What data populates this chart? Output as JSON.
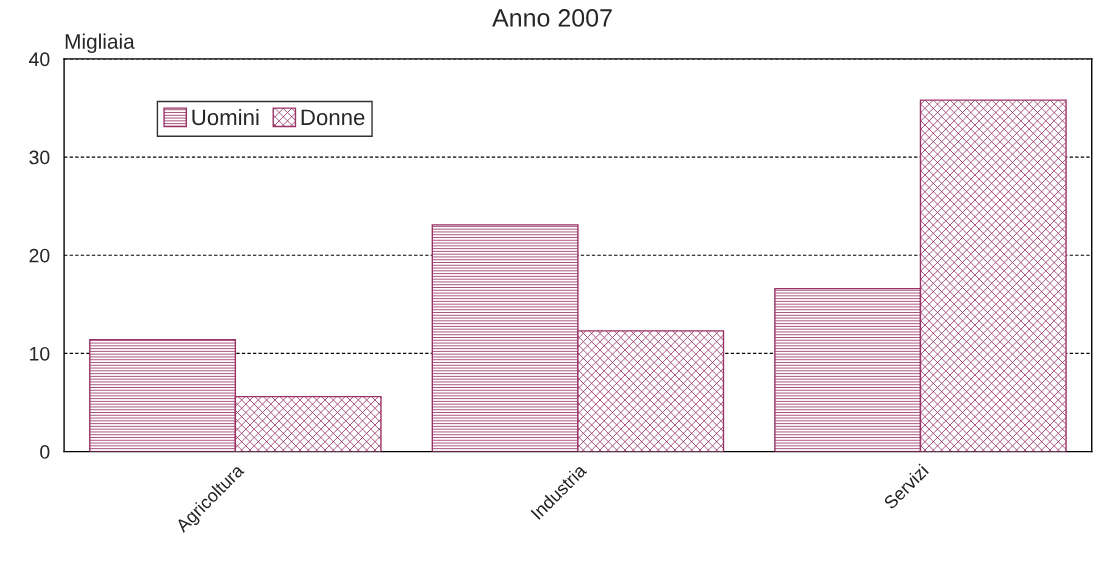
{
  "chart_data": {
    "type": "bar",
    "title": "Anno 2007",
    "ylabel": "Migliaia",
    "categories": [
      "Agricoltura",
      "Industria",
      "Servizi"
    ],
    "series": [
      {
        "name": "Uomini",
        "color": "#993366",
        "values": [
          11.4,
          23.1,
          16.6
        ]
      },
      {
        "name": "Donne",
        "color": "#993366",
        "values": [
          5.6,
          12.3,
          35.8
        ]
      }
    ],
    "ylim": [
      0,
      40
    ],
    "yticks": [
      0,
      10,
      20,
      30,
      40
    ],
    "grid": "y",
    "legend": "top left"
  }
}
